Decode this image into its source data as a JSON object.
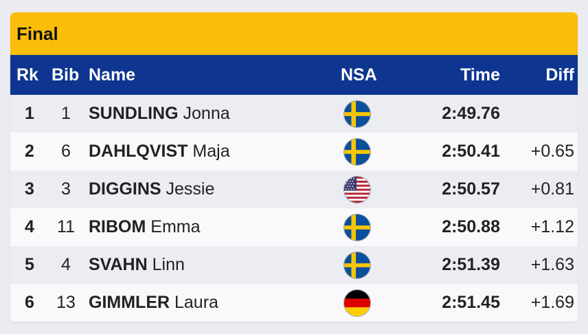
{
  "title": "Final",
  "headers": {
    "rank": "Rk",
    "bib": "Bib",
    "name": "Name",
    "nsa": "NSA",
    "time": "Time",
    "diff": "Diff"
  },
  "colors": {
    "title_bar": "#fbbd09",
    "header_bar": "#0e3590"
  },
  "results": [
    {
      "rank": "1",
      "bib": "1",
      "surname": "SUNDLING",
      "firstname": "Jonna",
      "nsa_flag": "sweden-flag-icon",
      "time": "2:49.76",
      "diff": ""
    },
    {
      "rank": "2",
      "bib": "6",
      "surname": "DAHLQVIST",
      "firstname": "Maja",
      "nsa_flag": "sweden-flag-icon",
      "time": "2:50.41",
      "diff": "+0.65"
    },
    {
      "rank": "3",
      "bib": "3",
      "surname": "DIGGINS",
      "firstname": "Jessie",
      "nsa_flag": "usa-flag-icon",
      "time": "2:50.57",
      "diff": "+0.81"
    },
    {
      "rank": "4",
      "bib": "11",
      "surname": "RIBOM",
      "firstname": "Emma",
      "nsa_flag": "sweden-flag-icon",
      "time": "2:50.88",
      "diff": "+1.12"
    },
    {
      "rank": "5",
      "bib": "4",
      "surname": "SVAHN",
      "firstname": "Linn",
      "nsa_flag": "sweden-flag-icon",
      "time": "2:51.39",
      "diff": "+1.63"
    },
    {
      "rank": "6",
      "bib": "13",
      "surname": "GIMMLER",
      "firstname": "Laura",
      "nsa_flag": "germany-flag-icon",
      "time": "2:51.45",
      "diff": "+1.69"
    }
  ]
}
